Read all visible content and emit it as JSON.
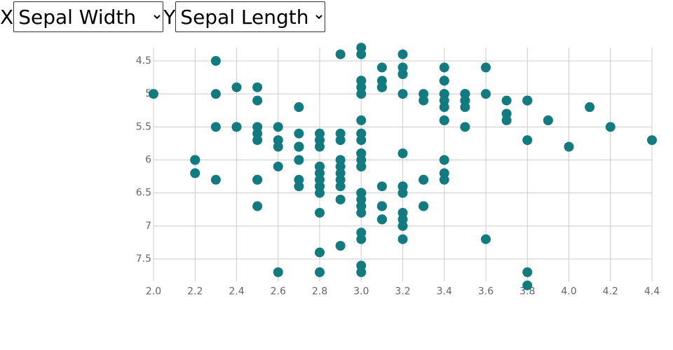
{
  "controls": {
    "x_label": "X",
    "x_selected": "Sepal Width",
    "y_label": "Y",
    "y_selected": "Sepal Length"
  },
  "chart_data": {
    "type": "scatter",
    "color": "#137b80",
    "grid": true,
    "yreverse": true,
    "xlim": [
      2.0,
      4.4
    ],
    "ylim": [
      4.3,
      7.9
    ],
    "xticks": [
      {
        "value": 2,
        "label": "2.0"
      },
      2.2,
      2.4,
      2.6,
      2.8,
      {
        "value": 3,
        "label": "3.0"
      },
      3.2,
      3.4,
      3.6,
      3.8,
      {
        "value": 4,
        "label": "4.0"
      },
      4.2,
      4.4
    ],
    "yticks": [
      4.5,
      5,
      5.5,
      6,
      6.5,
      7,
      7.5
    ],
    "x": [
      3.5,
      3.0,
      3.2,
      3.1,
      3.6,
      3.9,
      3.4,
      3.4,
      2.9,
      3.1,
      3.7,
      3.4,
      3.0,
      3.0,
      4.0,
      4.4,
      3.9,
      3.5,
      3.8,
      3.8,
      3.4,
      3.7,
      3.6,
      3.3,
      3.4,
      3.0,
      3.4,
      3.5,
      3.4,
      3.2,
      3.1,
      3.4,
      4.1,
      4.2,
      3.1,
      3.2,
      3.5,
      3.1,
      3.0,
      3.4,
      3.5,
      2.3,
      3.2,
      3.5,
      3.8,
      3.0,
      3.8,
      3.2,
      3.7,
      3.3,
      3.2,
      3.2,
      3.1,
      2.3,
      2.8,
      2.8,
      3.3,
      2.4,
      2.9,
      2.7,
      2.0,
      3.0,
      2.2,
      2.9,
      2.9,
      3.1,
      3.0,
      2.7,
      2.2,
      2.5,
      3.2,
      2.8,
      2.5,
      2.8,
      2.9,
      3.0,
      2.8,
      3.0,
      2.9,
      2.6,
      2.4,
      2.4,
      2.7,
      2.7,
      3.0,
      3.4,
      3.1,
      2.3,
      3.0,
      2.5,
      2.6,
      3.0,
      2.6,
      2.3,
      2.7,
      3.0,
      2.9,
      2.9,
      2.5,
      2.8,
      3.3,
      2.7,
      3.0,
      2.9,
      3.0,
      3.0,
      2.5,
      2.9,
      2.5,
      3.6,
      3.2,
      2.7,
      3.0,
      2.5,
      2.8,
      3.2,
      3.0,
      3.8,
      2.6,
      2.2,
      3.2,
      2.8,
      2.8,
      2.7,
      3.3,
      3.2,
      2.8,
      3.0,
      2.8,
      3.0,
      2.8,
      3.8,
      2.8,
      2.8,
      2.6,
      3.0,
      3.4,
      3.1,
      3.0,
      3.1,
      3.1,
      3.1,
      2.7,
      3.2,
      3.3,
      3.0,
      2.5,
      3.0,
      3.4,
      3.0
    ],
    "values": [
      5.1,
      4.9,
      4.7,
      4.6,
      5.0,
      5.4,
      4.6,
      5.0,
      4.4,
      4.9,
      5.4,
      4.8,
      4.8,
      4.3,
      5.8,
      5.7,
      5.4,
      5.1,
      5.7,
      5.1,
      5.4,
      5.1,
      4.6,
      5.1,
      4.8,
      5.0,
      5.0,
      5.2,
      5.2,
      4.7,
      4.8,
      5.4,
      5.2,
      5.5,
      4.9,
      5.0,
      5.5,
      4.9,
      4.4,
      5.1,
      5.0,
      4.5,
      4.4,
      5.0,
      5.1,
      4.8,
      5.1,
      4.6,
      5.3,
      5.0,
      7.0,
      6.4,
      6.9,
      5.5,
      6.5,
      5.7,
      6.3,
      4.9,
      6.6,
      5.2,
      5.0,
      5.9,
      6.0,
      6.1,
      5.6,
      6.7,
      5.6,
      5.8,
      6.2,
      5.6,
      5.9,
      6.1,
      6.3,
      6.1,
      6.4,
      6.6,
      6.8,
      6.7,
      6.0,
      5.7,
      5.5,
      5.5,
      5.8,
      6.0,
      5.4,
      6.0,
      6.7,
      6.3,
      5.6,
      5.5,
      5.5,
      6.1,
      5.8,
      5.0,
      5.6,
      5.7,
      5.7,
      6.2,
      5.1,
      5.7,
      6.3,
      5.8,
      7.1,
      6.3,
      6.5,
      7.6,
      4.9,
      7.3,
      6.7,
      7.2,
      6.5,
      6.4,
      6.8,
      5.7,
      5.8,
      6.4,
      6.5,
      7.7,
      7.7,
      6.0,
      6.9,
      5.6,
      7.7,
      6.3,
      6.7,
      7.2,
      6.2,
      6.1,
      6.4,
      7.2,
      7.4,
      7.9,
      6.4,
      6.3,
      6.1,
      7.7,
      6.3,
      6.4,
      6.0,
      6.9,
      6.7,
      6.9,
      5.8,
      6.8,
      6.7,
      6.7,
      6.3,
      6.5,
      6.2,
      5.9
    ]
  }
}
